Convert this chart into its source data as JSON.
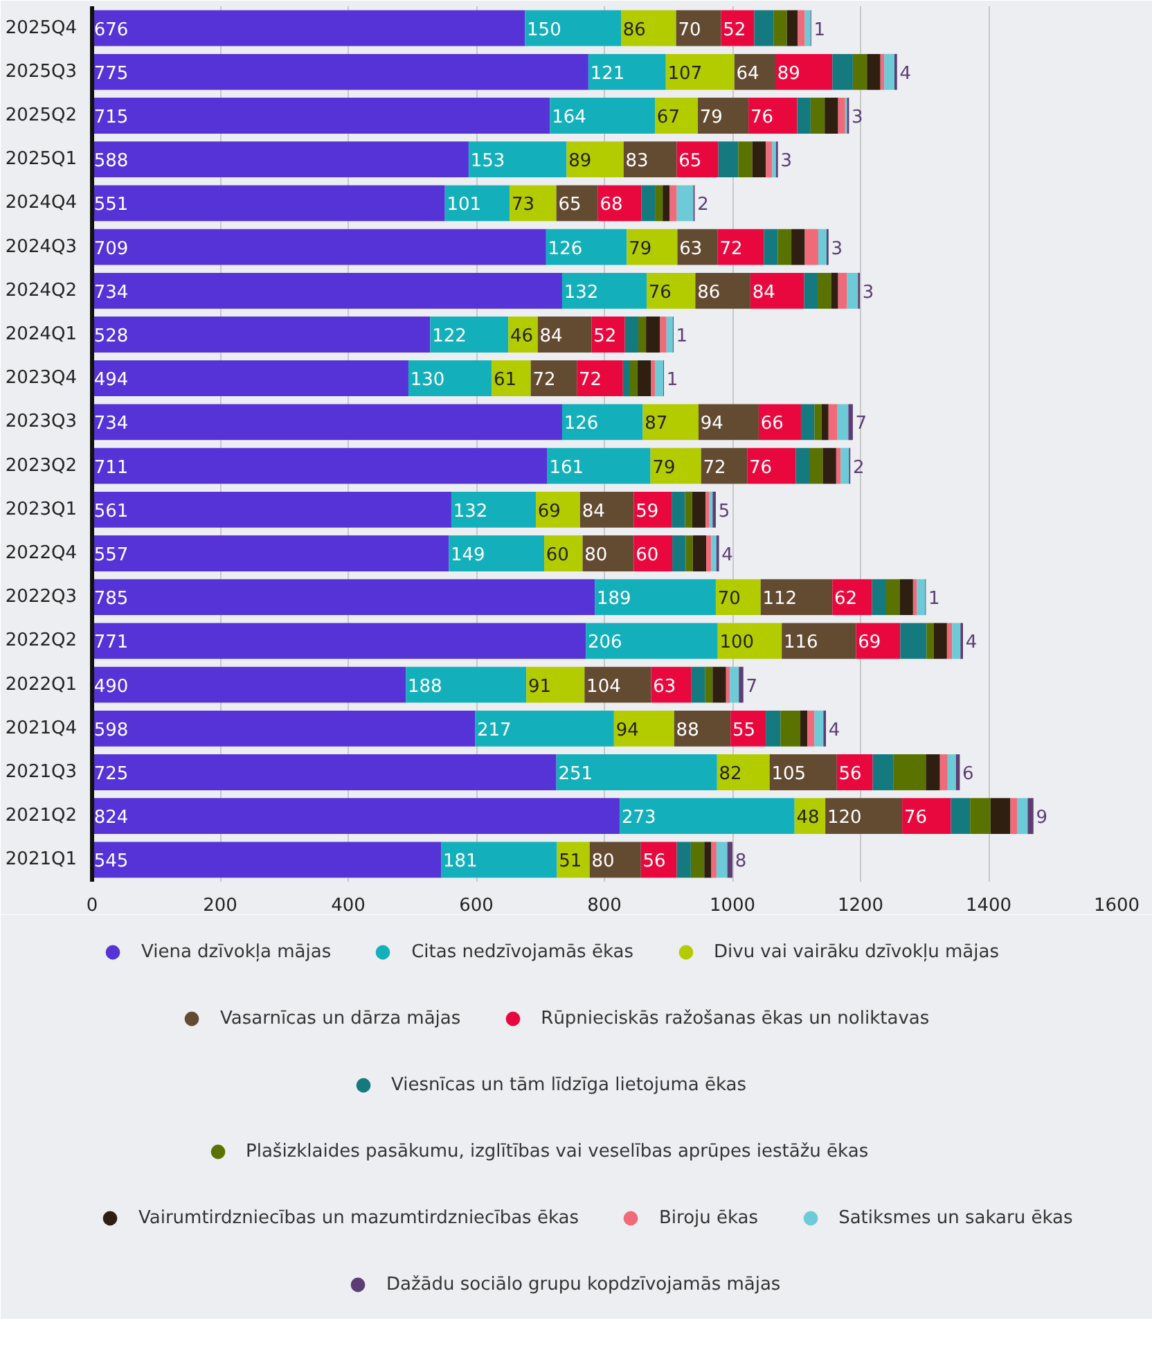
{
  "chart_data": {
    "type": "bar",
    "orientation": "horizontal",
    "stacked": true,
    "grid": "x",
    "legend": "bottom",
    "xlim": [
      0,
      1600
    ],
    "xticks": [
      0,
      200,
      400,
      600,
      800,
      1000,
      1200,
      1400,
      1600
    ],
    "categories": [
      "2025Q4",
      "2025Q3",
      "2025Q2",
      "2025Q1",
      "2024Q4",
      "2024Q3",
      "2024Q2",
      "2024Q1",
      "2023Q4",
      "2023Q3",
      "2023Q2",
      "2023Q1",
      "2022Q4",
      "2022Q3",
      "2022Q2",
      "2022Q1",
      "2021Q4",
      "2021Q3",
      "2021Q2",
      "2021Q1"
    ],
    "series": [
      {
        "name": "Viena dzīvokļa mājas",
        "color": "#5533d6",
        "values": [
          676,
          775,
          715,
          588,
          551,
          709,
          734,
          528,
          494,
          734,
          711,
          561,
          557,
          785,
          771,
          490,
          598,
          725,
          824,
          545
        ],
        "value_labels": [
          "676",
          "775",
          "715",
          "588",
          "551",
          "709",
          "734",
          "528",
          "494",
          "734",
          "711",
          "561",
          "557",
          "785",
          "771",
          "490",
          "598",
          "725",
          "824",
          "545"
        ]
      },
      {
        "name": "Citas nedzīvojamās ēkas",
        "color": "#13b0bb",
        "values": [
          150,
          121,
          164,
          153,
          101,
          126,
          132,
          122,
          130,
          126,
          161,
          132,
          149,
          189,
          206,
          188,
          217,
          251,
          273,
          181
        ],
        "value_labels": [
          "150",
          "121",
          "164",
          "153",
          "101",
          "126",
          "132",
          "122",
          "130",
          "126",
          "161",
          "132",
          "149",
          "189",
          "206",
          "188",
          "217",
          "251",
          "273",
          "181"
        ]
      },
      {
        "name": "Divu vai vairāku dzīvokļu mājas",
        "color": "#b3cc00",
        "values": [
          86,
          107,
          67,
          89,
          73,
          79,
          76,
          46,
          61,
          87,
          79,
          69,
          60,
          70,
          100,
          91,
          94,
          82,
          48,
          51
        ],
        "value_labels": [
          "86",
          "107",
          "67",
          "89",
          "73",
          "79",
          "76",
          "46",
          "61",
          "87",
          "79",
          "69",
          "60",
          "70",
          "100",
          "91",
          "94",
          "82",
          "48",
          "51"
        ]
      },
      {
        "name": "Vasarnīcas un dārza mājas",
        "color": "#634b32",
        "values": [
          70,
          64,
          79,
          83,
          65,
          63,
          86,
          84,
          72,
          94,
          72,
          84,
          80,
          112,
          116,
          104,
          88,
          105,
          120,
          80
        ],
        "value_labels": [
          "70",
          "64",
          "79",
          "83",
          "65",
          "63",
          "86",
          "84",
          "72",
          "94",
          "72",
          "84",
          "80",
          "112",
          "116",
          "104",
          "88",
          "105",
          "120",
          "80"
        ]
      },
      {
        "name": "Rūpnieciskās ražošanas ēkas un noliktavas",
        "color": "#e8083e",
        "values": [
          52,
          89,
          76,
          65,
          68,
          72,
          84,
          52,
          72,
          66,
          76,
          59,
          60,
          62,
          69,
          63,
          55,
          56,
          76,
          56
        ],
        "value_labels": [
          "52",
          "89",
          "76",
          "65",
          "68",
          "72",
          "84",
          "52",
          "72",
          "66",
          "76",
          "59",
          "60",
          "62",
          "69",
          "63",
          "55",
          "56",
          "76",
          "56"
        ]
      },
      {
        "name": "Viesnīcas un tām līdzīga lietojuma ēkas",
        "color": "#157a80",
        "values": [
          30,
          32,
          21,
          31,
          21,
          22,
          21,
          21,
          11,
          21,
          21,
          21,
          21,
          22,
          41,
          21,
          23,
          32,
          30,
          22
        ]
      },
      {
        "name": "Plašizklaides pasākumu, izglītības vai veselības aprūpes iestāžu ēkas",
        "color": "#5a7300",
        "values": [
          21,
          22,
          22,
          22,
          12,
          21,
          21,
          12,
          12,
          11,
          21,
          11,
          11,
          21,
          11,
          12,
          31,
          51,
          32,
          21
        ]
      },
      {
        "name": "Vairumtirdzniecības un mazumtirdzniecības ēkas",
        "color": "#2e1f10",
        "values": [
          17,
          21,
          21,
          21,
          11,
          21,
          11,
          22,
          21,
          11,
          21,
          21,
          21,
          21,
          21,
          21,
          11,
          22,
          31,
          11
        ]
      },
      {
        "name": "Biroju ēkas",
        "color": "#f06a7a",
        "values": [
          11,
          6,
          11,
          10,
          11,
          21,
          14,
          10,
          6,
          14,
          7,
          6,
          8,
          6,
          8,
          6,
          11,
          12,
          11,
          8
        ]
      },
      {
        "name": "Satiksmes un sakaru ēkas",
        "color": "#6ccbd6",
        "values": [
          9,
          16,
          3,
          6,
          26,
          13,
          17,
          10,
          13,
          17,
          13,
          5,
          8,
          13,
          13,
          14,
          14,
          13,
          16,
          17
        ]
      },
      {
        "name": "Dažādu sociālo grupu kopdzīvojamās mājas",
        "color": "#5d3d73",
        "values": [
          1,
          4,
          3,
          3,
          2,
          3,
          3,
          1,
          1,
          7,
          2,
          5,
          4,
          1,
          4,
          7,
          4,
          6,
          9,
          8
        ],
        "value_labels": [
          "1",
          "4",
          "3",
          "3",
          "2",
          "3",
          "3",
          "1",
          "1",
          "7",
          "2",
          "5",
          "4",
          "1",
          "4",
          "7",
          "4",
          "6",
          "9",
          "8"
        ]
      }
    ]
  }
}
